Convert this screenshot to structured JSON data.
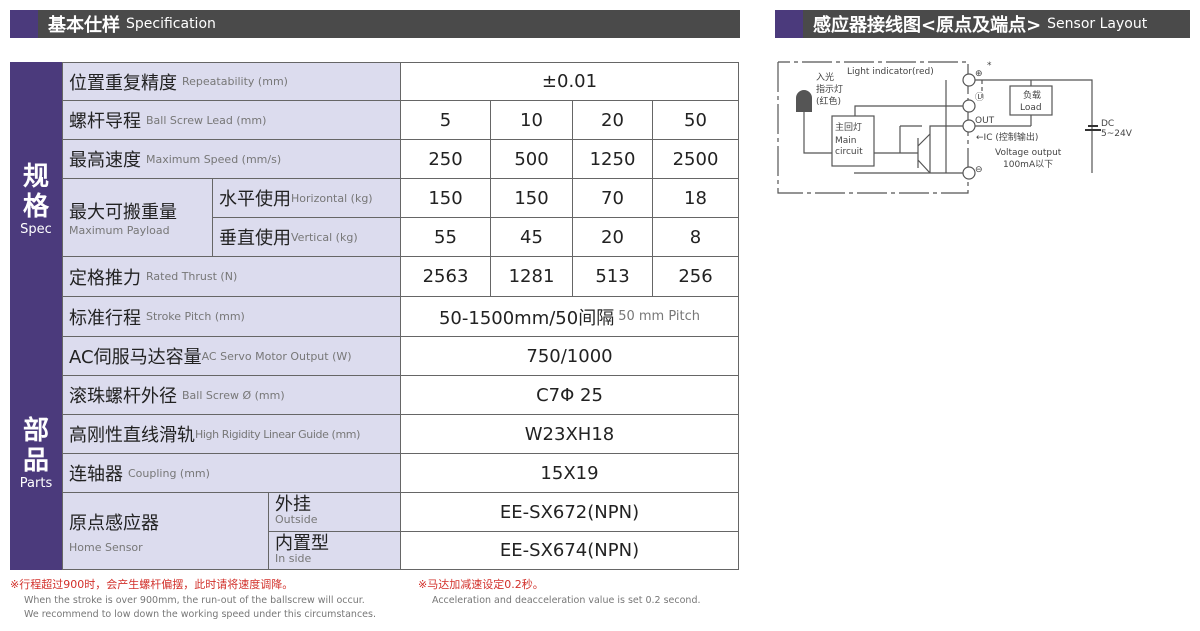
{
  "spec_header": {
    "zh": "基本仕样",
    "en": "Specification"
  },
  "sensor_header": {
    "zh": "感应器接线图<原点及端点>",
    "en": "Sensor Layout"
  },
  "spec_category": {
    "zh1": "规",
    "zh2": "格",
    "en": "Spec"
  },
  "parts_category": {
    "zh1": "部",
    "zh2": "品",
    "en": "Parts"
  },
  "rows": {
    "repeatability": {
      "zh": "位置重复精度",
      "en": "Repeatability (mm)",
      "value": "±0.01"
    },
    "lead": {
      "zh": "螺杆导程",
      "en": "Ball Screw Lead (mm)",
      "values": [
        "5",
        "10",
        "20",
        "50"
      ]
    },
    "speed": {
      "zh": "最高速度",
      "en": "Maximum Speed (mm/s)",
      "values": [
        "250",
        "500",
        "1250",
        "2500"
      ]
    },
    "payload": {
      "zh": "最大可搬重量",
      "en": "Maximum Payload",
      "horizontal": {
        "zh": "水平使用",
        "en": "Horizontal (kg)",
        "values": [
          "150",
          "150",
          "70",
          "18"
        ]
      },
      "vertical": {
        "zh": "垂直使用",
        "en": "Vertical (kg)",
        "values": [
          "55",
          "45",
          "20",
          "8"
        ]
      }
    },
    "thrust": {
      "zh": "定格推力",
      "en": "Rated Thrust (N)",
      "values": [
        "2563",
        "1281",
        "513",
        "256"
      ]
    },
    "stroke": {
      "zh": "标准行程",
      "en": "Stroke Pitch (mm)",
      "value": "50-1500mm/50间隔",
      "value_en": "50 mm Pitch"
    },
    "motor": {
      "zh": "AC伺服马达容量",
      "en": "AC Servo Motor Output (W)",
      "value": "750/1000"
    },
    "screw_dia": {
      "zh": "滚珠螺杆外径",
      "en": "Ball Screw Ø (mm)",
      "value": "C7Φ 25"
    },
    "guide": {
      "zh": "高刚性直线滑轨",
      "en": "High Rigidity Linear Guide (mm)",
      "value": "W23XH18"
    },
    "coupling": {
      "zh": "连轴器",
      "en": "Coupling (mm)",
      "value": "15X19"
    },
    "home": {
      "zh": "原点感应器",
      "en": "Home Sensor",
      "outside": {
        "zh": "外挂",
        "en": "Outside",
        "value": "EE-SX672(NPN)"
      },
      "inside": {
        "zh": "内置型",
        "en": "In side",
        "value": "EE-SX674(NPN)"
      }
    }
  },
  "notes": {
    "stroke_zh": "※行程超过900时，会产生螺杆偏摆，此时请将速度调降。",
    "stroke_en1": "When the stroke is over 900mm, the run-out of the ballscrew will occur.",
    "stroke_en2": "We recommend to low down the working speed under this circumstances.",
    "accel_zh": "※马达加减速设定0.2秒。",
    "accel_en": "Acceleration and deacceleration value is set 0.2 second."
  },
  "diagram": {
    "light_indicator": "Light indicator(red)",
    "light_zh1": "入光",
    "light_zh2": "指示灯",
    "light_zh3": "(红色)",
    "main_zh": "主回灯",
    "main_en1": "Main",
    "main_en2": "circuit",
    "load_zh": "负载",
    "load_en": "Load",
    "out": "OUT",
    "ic": "←IC (控制输出)",
    "voltage": "Voltage output",
    "current": "100mA以下",
    "dc": "DC",
    "dc_v": "5~24V",
    "plus": "⊕",
    "minus": "⊖",
    "l": "Ⓛ",
    "star": "*"
  },
  "colors": {
    "accent": "#4b3a7c",
    "header": "#4a4a4a",
    "label_bg": "#dcdcee",
    "note": "#d2302a"
  }
}
